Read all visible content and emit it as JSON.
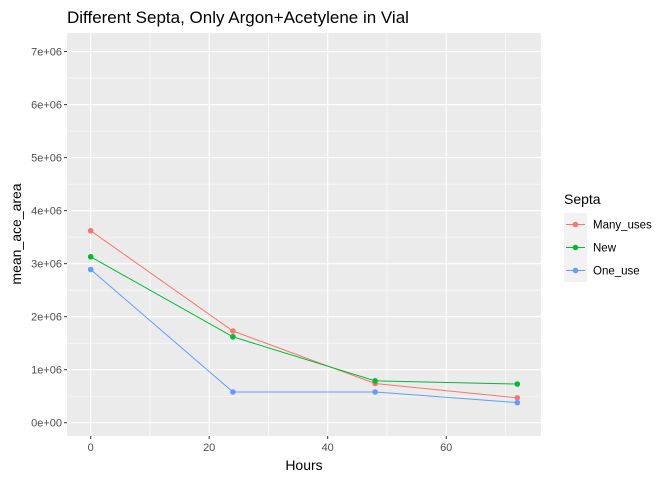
{
  "chart_data": {
    "type": "line",
    "title": "Different Septa, Only Argon+Acetylene in Vial",
    "xlabel": "Hours",
    "ylabel": "mean_ace_area",
    "xlim": [
      -4,
      76
    ],
    "ylim": [
      -250000,
      7350000
    ],
    "x_ticks": [
      0,
      20,
      40,
      60
    ],
    "x_tick_labels": [
      "0",
      "20",
      "40",
      "60"
    ],
    "y_ticks": [
      0,
      1000000,
      2000000,
      3000000,
      4000000,
      5000000,
      6000000,
      7000000
    ],
    "y_tick_labels": [
      "0e+00",
      "1e+06",
      "2e+06",
      "3e+06",
      "4e+06",
      "5e+06",
      "6e+06",
      "7e+06"
    ],
    "grid": true,
    "legend": {
      "title": "Septa",
      "placement": "right"
    },
    "series": [
      {
        "name": "Many_uses",
        "color": "#F8766D",
        "points": [
          [
            0,
            3620000
          ],
          [
            24,
            1730000
          ],
          [
            48,
            740000
          ],
          [
            72,
            470000
          ]
        ]
      },
      {
        "name": "New",
        "color": "#00BA38",
        "points": [
          [
            0,
            3130000
          ],
          [
            24,
            1620000
          ],
          [
            48,
            790000
          ],
          [
            72,
            730000
          ]
        ]
      },
      {
        "name": "One_use",
        "color": "#619CFF",
        "points": [
          [
            0,
            2890000
          ],
          [
            24,
            580000
          ],
          [
            48,
            580000
          ],
          [
            72,
            380000
          ]
        ]
      }
    ]
  }
}
